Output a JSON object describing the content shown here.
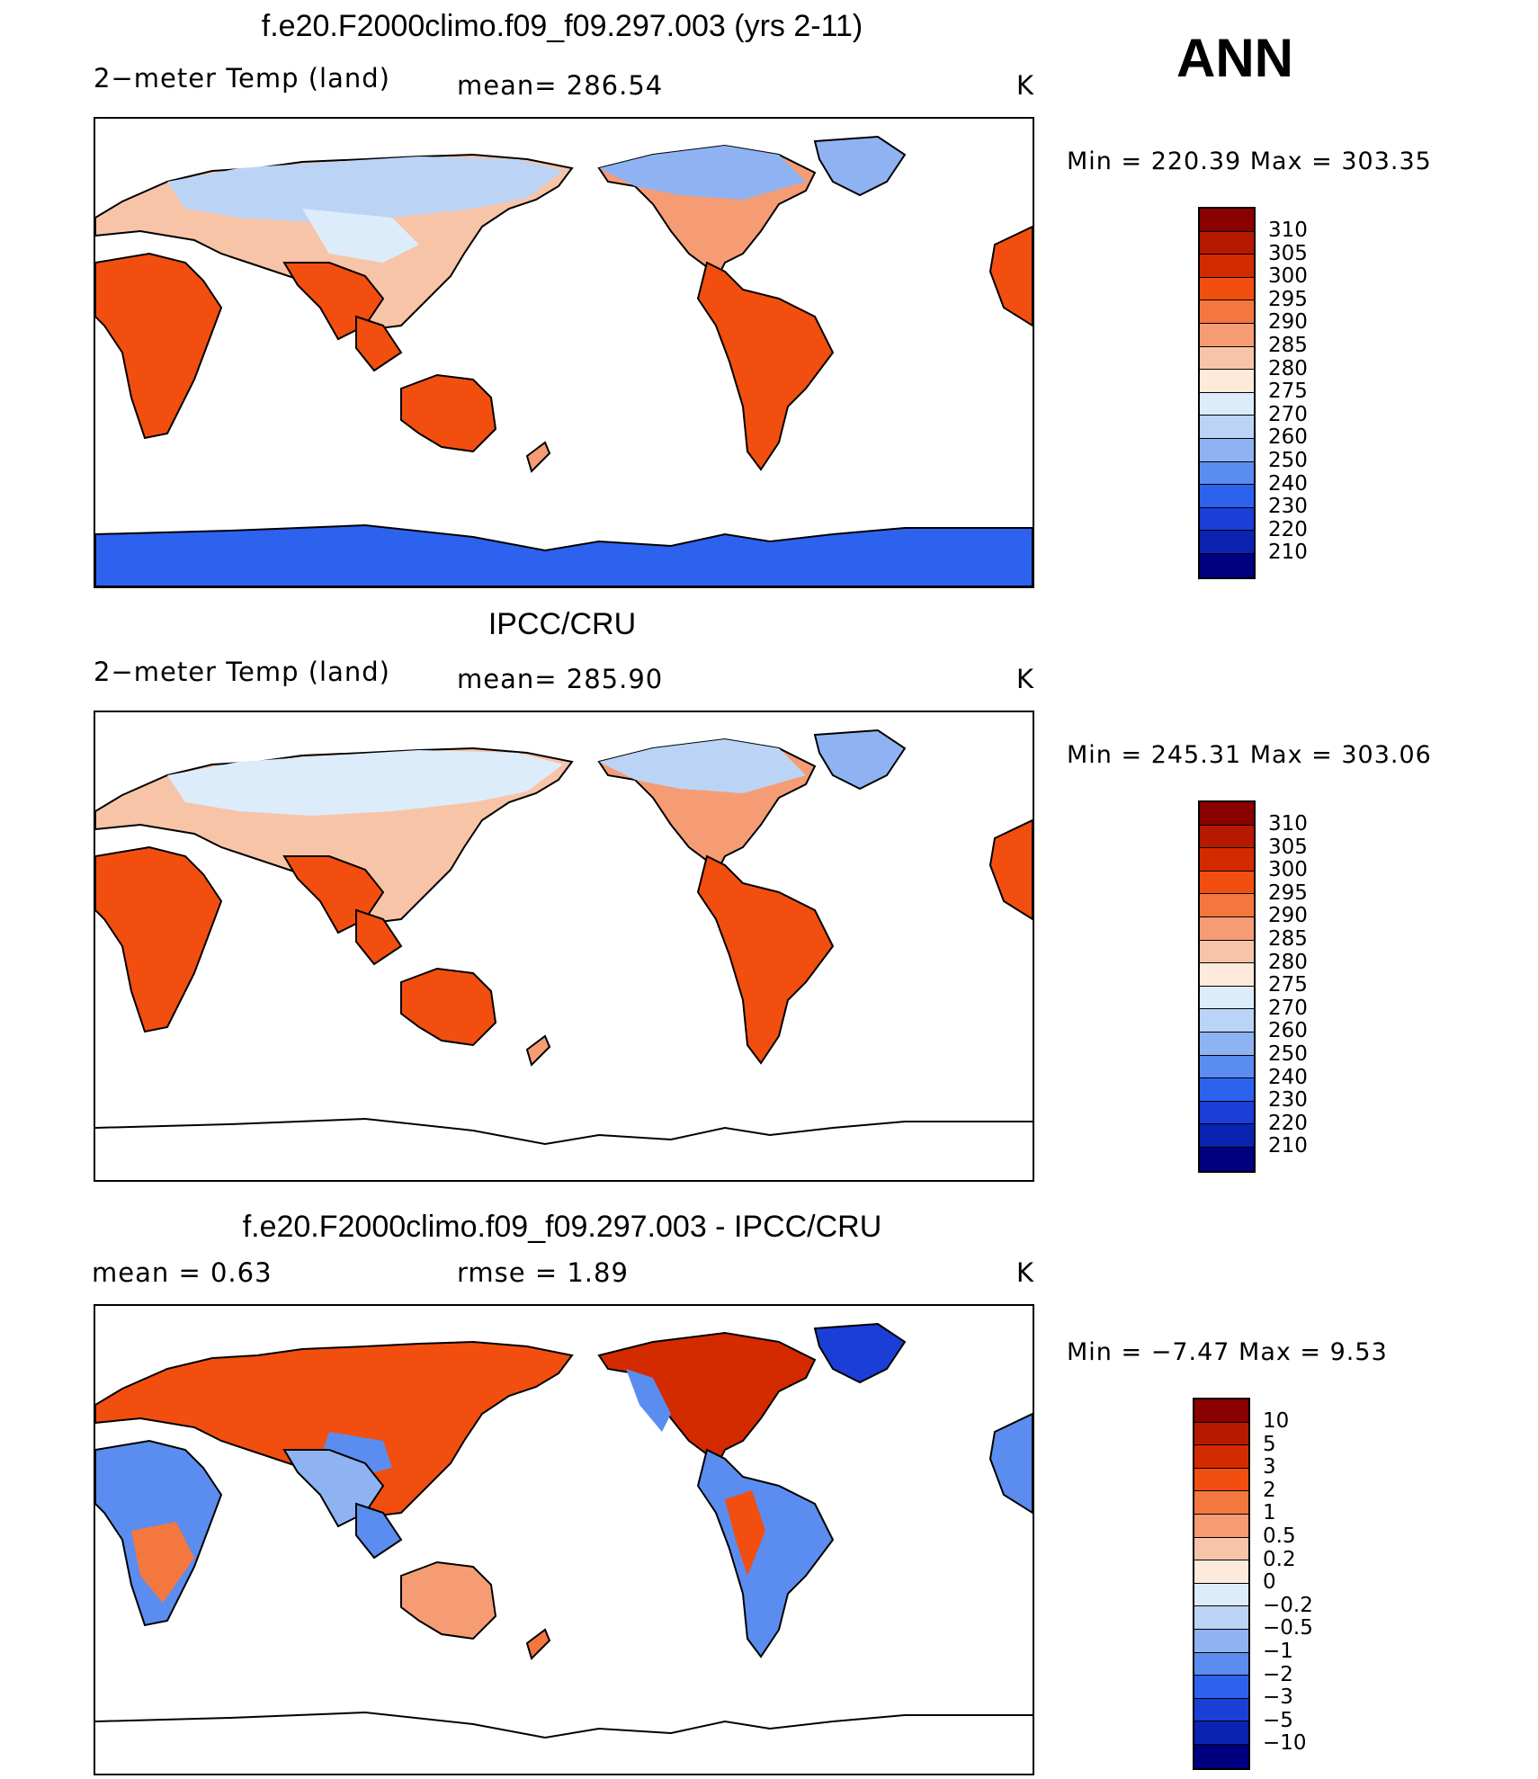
{
  "season": "ANN",
  "panels": [
    {
      "title": "f.e20.F2000climo.f09_f09.297.003 (yrs 2-11)",
      "left_label": "2−meter Temp (land)",
      "center_label": "mean=  286.54",
      "units": "K",
      "min_max": "Min  =  220.39  Max  =  303.35"
    },
    {
      "title": "IPCC/CRU",
      "left_label": "2−meter Temp (land)",
      "center_label": "mean=  285.90",
      "units": "K",
      "min_max": "Min  =  245.31  Max  =  303.06"
    },
    {
      "title": "f.e20.F2000climo.f09_f09.297.003 - IPCC/CRU",
      "left_label": "mean  =      0.63",
      "center_label": "rmse  =      1.89",
      "units": "K",
      "min_max": "Min  =     −7.47  Max  =        9.53"
    }
  ],
  "colorbars": {
    "abs_levels": [
      "310",
      "305",
      "300",
      "295",
      "290",
      "285",
      "280",
      "275",
      "270",
      "260",
      "250",
      "240",
      "230",
      "220",
      "210"
    ],
    "abs_colors": [
      "#8b0000",
      "#b51a00",
      "#d42a00",
      "#f24e0f",
      "#f4773f",
      "#f69c74",
      "#f8c4a8",
      "#fdeadb",
      "#ddecfb",
      "#bbd4f6",
      "#8fb3f2",
      "#5a8def",
      "#2c62ee",
      "#1a3ed6",
      "#0a23b0",
      "#000080"
    ],
    "diff_levels": [
      "10",
      "5",
      "3",
      "2",
      "1",
      "0.5",
      "0.2",
      "0",
      "−0.2",
      "−0.5",
      "−1",
      "−2",
      "−3",
      "−5",
      "−10"
    ],
    "diff_colors": [
      "#8b0000",
      "#b51a00",
      "#d42a00",
      "#f24e0f",
      "#f4773f",
      "#f69c74",
      "#f8c4a8",
      "#fdeadb",
      "#ddecfb",
      "#bbd4f6",
      "#8fb3f2",
      "#5a8def",
      "#2c62ee",
      "#1a3ed6",
      "#0a23b0",
      "#000080"
    ]
  },
  "icons": [
    "world-map-pacific-centered"
  ]
}
